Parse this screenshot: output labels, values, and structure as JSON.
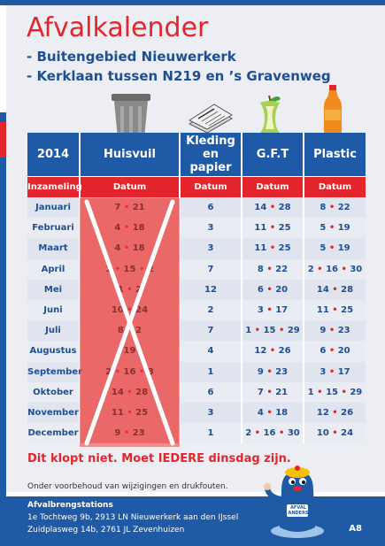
{
  "title": "Afvalkalender",
  "locations": [
    "- Buitengebied Nieuwerkerk",
    "- Kerklaan tussen N219 en ’s Gravenweg"
  ],
  "table": {
    "headers": [
      "2014",
      "Huisvuil",
      "Kleding\nen papier",
      "G.F.T",
      "Plastic"
    ],
    "subheaders": [
      "Inzameling",
      "Datum",
      "Datum",
      "Datum",
      "Datum"
    ],
    "rows": [
      {
        "month": "Januari",
        "cells": [
          [
            "7",
            "21"
          ],
          [
            "6"
          ],
          [
            "14",
            "28"
          ],
          [
            "8",
            "22"
          ]
        ]
      },
      {
        "month": "Februari",
        "cells": [
          [
            "4",
            "18"
          ],
          [
            "3"
          ],
          [
            "11",
            "25"
          ],
          [
            "5",
            "19"
          ]
        ]
      },
      {
        "month": "Maart",
        "cells": [
          [
            "4",
            "18"
          ],
          [
            "3"
          ],
          [
            "11",
            "25"
          ],
          [
            "5",
            "19"
          ]
        ]
      },
      {
        "month": "April",
        "cells": [
          [
            "1",
            "15",
            "2"
          ],
          [
            "7"
          ],
          [
            "8",
            "22"
          ],
          [
            "2",
            "16",
            "30"
          ]
        ]
      },
      {
        "month": "Mei",
        "cells": [
          [
            "1",
            "2"
          ],
          [
            "12"
          ],
          [
            "6",
            "20"
          ],
          [
            "14",
            "28"
          ]
        ]
      },
      {
        "month": "Juni",
        "cells": [
          [
            "10",
            "24"
          ],
          [
            "2"
          ],
          [
            "3",
            "17"
          ],
          [
            "11",
            "25"
          ]
        ]
      },
      {
        "month": "Juli",
        "cells": [
          [
            "8",
            "2"
          ],
          [
            "7"
          ],
          [
            "1",
            "15",
            "29"
          ],
          [
            "9",
            "23"
          ]
        ]
      },
      {
        "month": "Augustus",
        "cells": [
          [
            "19"
          ],
          [
            "4"
          ],
          [
            "12",
            "26"
          ],
          [
            "6",
            "20"
          ]
        ]
      },
      {
        "month": "September",
        "cells": [
          [
            "2",
            "16",
            "3"
          ],
          [
            "1"
          ],
          [
            "9",
            "23"
          ],
          [
            "3",
            "17"
          ]
        ]
      },
      {
        "month": "Oktober",
        "cells": [
          [
            "14",
            "28"
          ],
          [
            "6"
          ],
          [
            "7",
            "21"
          ],
          [
            "1",
            "15",
            "29"
          ]
        ]
      },
      {
        "month": "November",
        "cells": [
          [
            "11",
            "25"
          ],
          [
            "3"
          ],
          [
            "4",
            "18"
          ],
          [
            "12",
            "26"
          ]
        ]
      },
      {
        "month": "December",
        "cells": [
          [
            "9",
            "23"
          ],
          [
            "1"
          ],
          [
            "2",
            "16",
            "30"
          ],
          [
            "10",
            "24"
          ]
        ]
      }
    ]
  },
  "annotation": "Dit klopt niet. Moet IEDERE dinsdag zijn.",
  "footnote": "Onder voorbehoud van wijzigingen en drukfouten.",
  "footer": {
    "heading": "Afvalbrengstations",
    "lines": [
      "1e Tochtweg 9b, 2913 LN Nieuwerkerk aan den IJssel",
      "Zuidplasweg 14b, 2761 JL Zevenhuizen"
    ],
    "page": "A8"
  },
  "mascot": {
    "label": "AFVAL ANDERS"
  },
  "colors": {
    "brand_blue": "#1f5aa6",
    "brand_red": "#e3262e",
    "overlay_red": "#e84040"
  },
  "icons": [
    "trash-bin-icon",
    "newspaper-icon",
    "apple-core-icon",
    "plastic-bottle-icon",
    "mole-mascot-icon"
  ]
}
